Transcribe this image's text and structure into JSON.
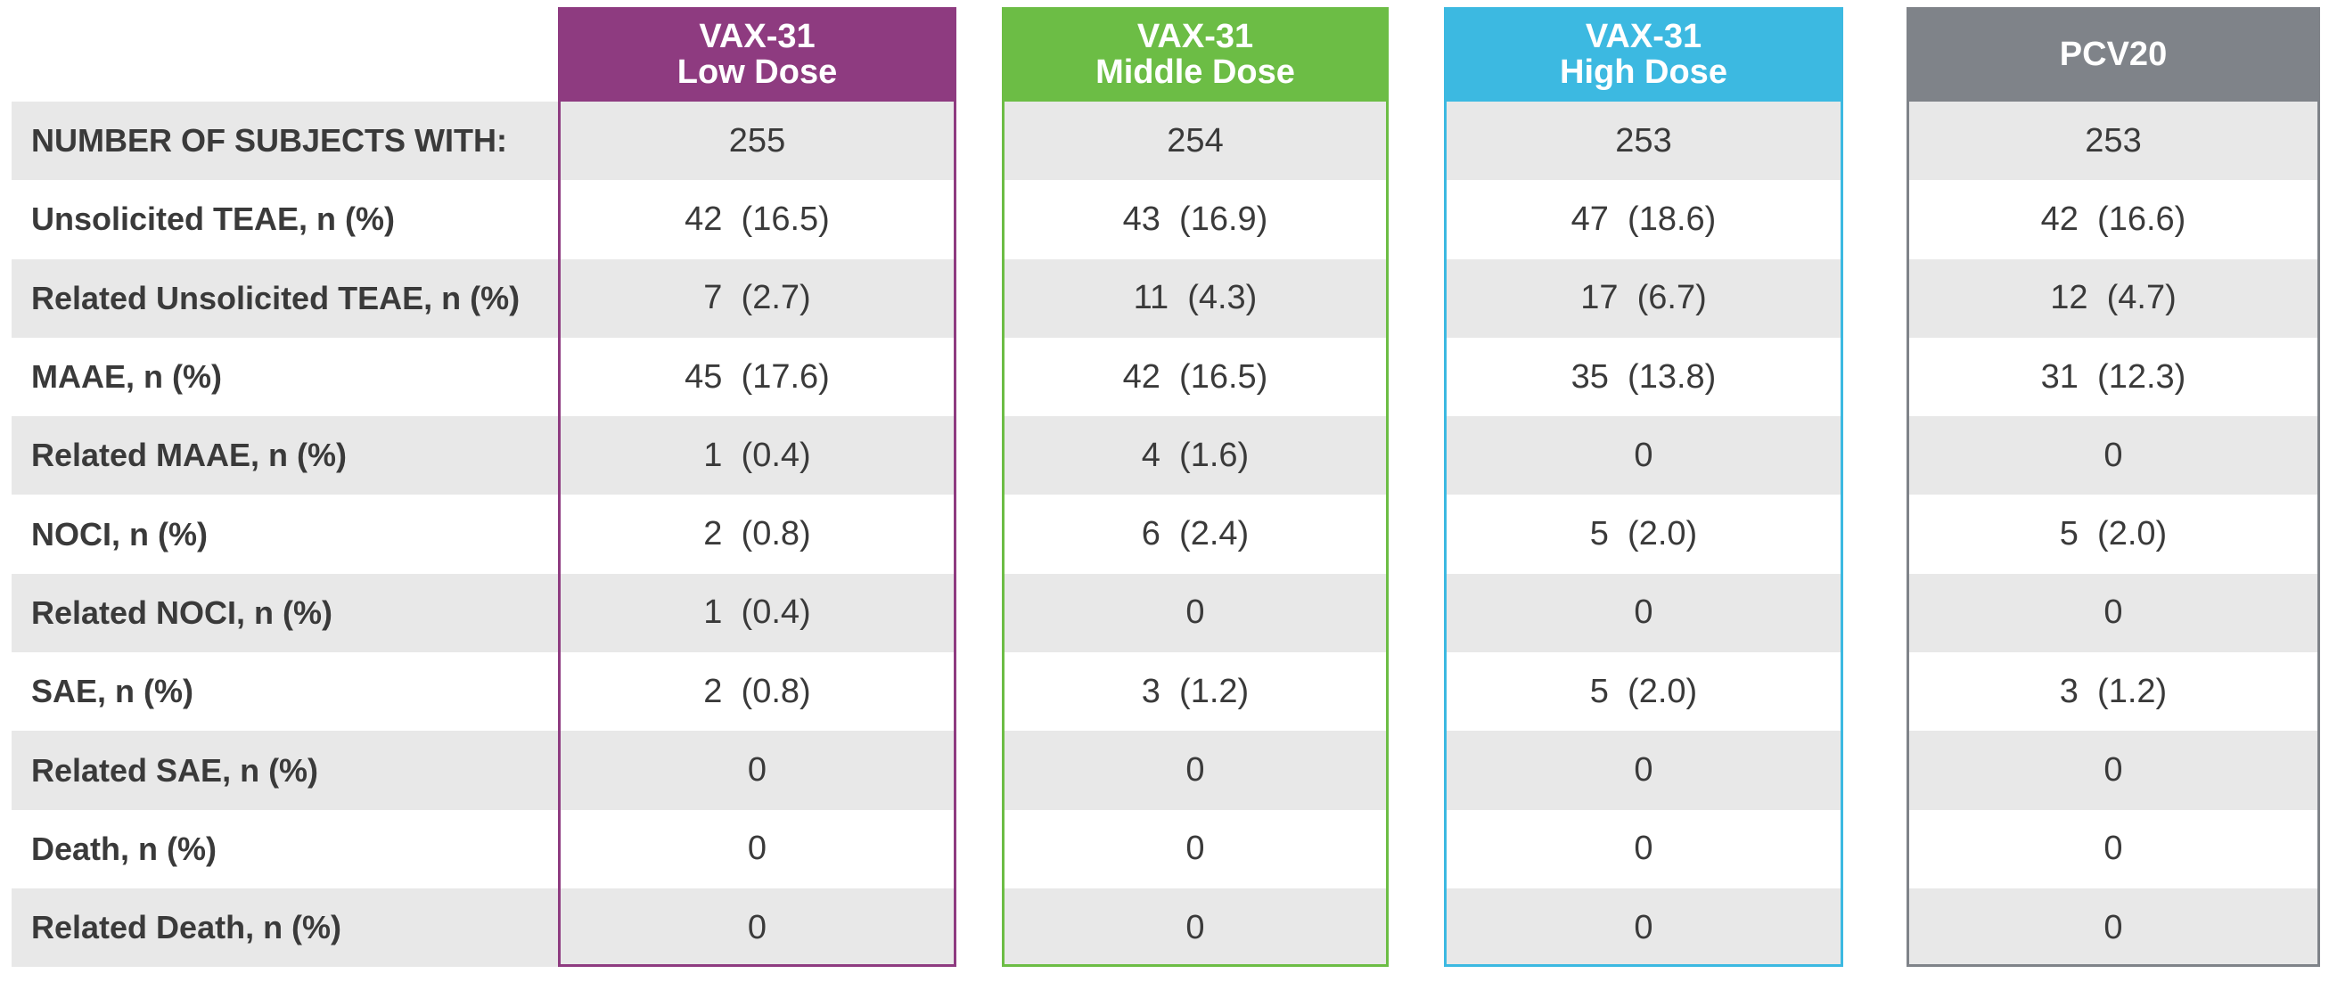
{
  "table": {
    "columns": [
      {
        "line1": "VAX-31",
        "line2": "Low Dose",
        "color": "#8e3b80"
      },
      {
        "line1": "VAX-31",
        "line2": "Middle Dose",
        "color": "#6cbd45"
      },
      {
        "line1": "VAX-31",
        "line2": "High Dose",
        "color": "#3cb9e1"
      },
      {
        "line1": "PCV20",
        "color": "#7f8389"
      }
    ],
    "rows": [
      {
        "label": "NUMBER OF SUBJECTS WITH:",
        "cells": [
          "255",
          "254",
          "253",
          "253"
        ]
      },
      {
        "label": "Unsolicited TEAE, n (%)",
        "cells": [
          "42  (16.5)",
          "43  (16.9)",
          "47  (18.6)",
          "42  (16.6)"
        ]
      },
      {
        "label": "Related Unsolicited TEAE, n (%)",
        "cells": [
          "7  (2.7)",
          "11  (4.3)",
          "17  (6.7)",
          "12  (4.7)"
        ]
      },
      {
        "label": "MAAE, n (%)",
        "cells": [
          "45  (17.6)",
          "42  (16.5)",
          "35  (13.8)",
          "31  (12.3)"
        ]
      },
      {
        "label": "Related MAAE, n (%)",
        "cells": [
          "1  (0.4)",
          "4  (1.6)",
          "0",
          "0"
        ]
      },
      {
        "label": "NOCI, n (%)",
        "cells": [
          "2  (0.8)",
          "6  (2.4)",
          "5  (2.0)",
          "5  (2.0)"
        ]
      },
      {
        "label": "Related NOCI, n (%)",
        "cells": [
          "1  (0.4)",
          "0",
          "0",
          "0"
        ]
      },
      {
        "label": "SAE, n (%)",
        "cells": [
          "2  (0.8)",
          "3  (1.2)",
          "5  (2.0)",
          "3  (1.2)"
        ]
      },
      {
        "label": "Related SAE, n (%)",
        "cells": [
          "0",
          "0",
          "0",
          "0"
        ]
      },
      {
        "label": "Death, n (%)",
        "cells": [
          "0",
          "0",
          "0",
          "0"
        ]
      },
      {
        "label": "Related Death, n (%)",
        "cells": [
          "0",
          "0",
          "0",
          "0"
        ]
      }
    ]
  }
}
